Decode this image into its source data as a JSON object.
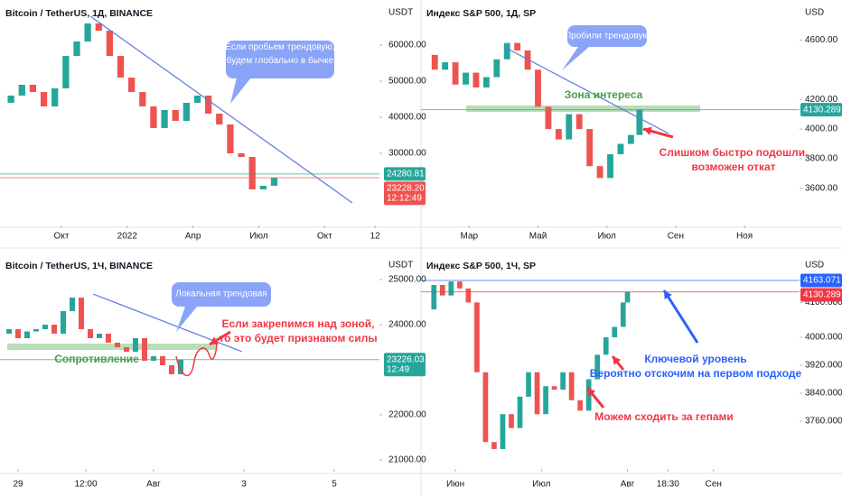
{
  "chart_data": [
    {
      "type": "candlestick",
      "title": "Bitcoin / TetherUS, 1Д, BINANCE",
      "unit": "USDT",
      "x": [
        -5.8,
        -5.3,
        -4.8,
        -4.3,
        -3.8,
        -3.3,
        -2.8,
        -2.3,
        -1.8,
        -1.3,
        -0.8,
        -0.3,
        0.2,
        0.7,
        1.2,
        1.7,
        2.2,
        2.7,
        3.2,
        3.7,
        4.2,
        4.7,
        5.2,
        5.7,
        6.2,
        6.7
      ],
      "values": [
        44000,
        46000,
        49000,
        47000,
        43000,
        48000,
        57000,
        61000,
        66000,
        64000,
        57000,
        51000,
        47000,
        43000,
        37000,
        42000,
        39000,
        44000,
        46000,
        41000,
        38000,
        30000,
        29000,
        20000,
        21000,
        23228.2
      ],
      "xlim": [
        -5.8,
        11.5
      ],
      "xticks": [
        {
          "value": -3,
          "label": "Окт"
        },
        {
          "value": 0,
          "label": "2022"
        },
        {
          "value": 3,
          "label": "Апр"
        },
        {
          "value": 6,
          "label": "Июл"
        },
        {
          "value": 9,
          "label": "Окт"
        },
        {
          "value": 11.3,
          "label": "12"
        }
      ],
      "ylim": [
        10000,
        72500
      ],
      "yticks": [
        {
          "value": 60000,
          "label": "60000.00"
        },
        {
          "value": 50000,
          "label": "50000.00"
        },
        {
          "value": 40000,
          "label": "40000.00"
        },
        {
          "value": 30000,
          "label": "30000.00"
        }
      ],
      "price_labels": [
        {
          "value": 24280.81,
          "label": "24280.81",
          "color": "#26a69a"
        },
        {
          "value": 23228.2,
          "label": "23228.20",
          "color": "#ef5350",
          "countdown": "12:12:49"
        }
      ],
      "annotations": [
        {
          "lines": [
            "Если пробьем трендовую,",
            "будем глобально в бычке"
          ],
          "color": "#8aa4f8"
        }
      ]
    },
    {
      "type": "candlestick",
      "title": "Индекс S&P 500, 1Д, SP",
      "unit": "USD",
      "x": [
        1.7,
        2.0,
        2.3,
        2.6,
        2.9,
        3.2,
        3.5,
        3.8,
        4.1,
        4.4,
        4.7,
        5.0,
        5.3,
        5.6,
        5.9,
        6.2,
        6.5,
        6.8,
        7.1,
        7.4,
        7.7,
        7.95
      ],
      "values": [
        4500,
        4400,
        4450,
        4300,
        4380,
        4280,
        4350,
        4470,
        4580,
        4530,
        4400,
        4150,
        4000,
        3930,
        4100,
        4000,
        3750,
        3670,
        3830,
        3900,
        3960,
        4130.289
      ],
      "xlim": [
        1.6,
        12.6
      ],
      "xticks": [
        {
          "value": 3,
          "label": "Мар"
        },
        {
          "value": 5,
          "label": "Май"
        },
        {
          "value": 7,
          "label": "Июл"
        },
        {
          "value": 9,
          "label": "Сен"
        },
        {
          "value": 11,
          "label": "Ноя"
        }
      ],
      "ylim": [
        3350,
        4870
      ],
      "yticks": [
        {
          "value": 4600,
          "label": "4600.00"
        },
        {
          "value": 4200,
          "label": "4200.00"
        },
        {
          "value": 4000,
          "label": "4000.00"
        },
        {
          "value": 3800,
          "label": "3800.00"
        },
        {
          "value": 3600,
          "label": "3600.00"
        }
      ],
      "price_labels": [
        {
          "value": 4130.289,
          "label": "4130.289",
          "color": "#26a69a"
        }
      ],
      "annotations": [
        {
          "lines": [
            "Пробили трендовую"
          ],
          "color": "#8aa4f8"
        },
        {
          "lines": [
            "Зона интереса"
          ],
          "color": "#43a047"
        },
        {
          "lines": [
            "Слишком быстро подошли,",
            "возможен откат"
          ],
          "color": "#f23645"
        }
      ]
    },
    {
      "type": "candlestick",
      "title": "Bitcoin / TetherUS, 1Ч, BINANCE",
      "unit": "USDT",
      "x": [
        -3.4,
        -3.2,
        -3.0,
        -2.8,
        -2.6,
        -2.4,
        -2.2,
        -2.0,
        -1.8,
        -1.6,
        -1.4,
        -1.2,
        -1.0,
        -0.8,
        -0.6,
        -0.4,
        -0.2,
        0.0,
        0.2,
        0.4,
        0.6
      ],
      "values": [
        23800,
        23900,
        23700,
        23850,
        23900,
        24000,
        23800,
        24300,
        24600,
        23900,
        23700,
        23800,
        23600,
        23500,
        23400,
        23700,
        23200,
        23300,
        23100,
        22900,
        23226.03
      ],
      "xlim": [
        -3.4,
        5.0
      ],
      "xticks": [
        {
          "value": -3,
          "label": "29"
        },
        {
          "value": -1.5,
          "label": "12:00"
        },
        {
          "value": 0,
          "label": "Авг"
        },
        {
          "value": 2,
          "label": "3"
        },
        {
          "value": 4,
          "label": "5"
        }
      ],
      "ylim": [
        20800,
        25600
      ],
      "yticks": [
        {
          "value": 25000,
          "label": "25000.00"
        },
        {
          "value": 24000,
          "label": "24000.00"
        },
        {
          "value": 22000,
          "label": "22000.00"
        },
        {
          "value": 21000,
          "label": "21000.00"
        }
      ],
      "price_labels": [
        {
          "value": 23226.03,
          "label": "23226.03",
          "color": "#26a69a",
          "countdown": "12:49"
        }
      ],
      "annotations": [
        {
          "lines": [
            "Локальная трендовая"
          ],
          "color": "#8aa4f8"
        },
        {
          "lines": [
            "Если закрепимся над зоной,",
            "то это будет признаком силы"
          ],
          "color": "#f23645"
        },
        {
          "lines": [
            "Сопротивление"
          ],
          "color": "#43a047"
        }
      ]
    },
    {
      "type": "candlestick",
      "title": "Индекс S&P 500, 1Ч, SP",
      "unit": "USD",
      "x": [
        5.65,
        5.75,
        5.85,
        5.95,
        6.05,
        6.15,
        6.25,
        6.35,
        6.45,
        6.55,
        6.65,
        6.75,
        6.85,
        6.95,
        7.05,
        7.15,
        7.25,
        7.35,
        7.45,
        7.55,
        7.65,
        7.75,
        7.85,
        7.95,
        8.0
      ],
      "values": [
        4080,
        4150,
        4120,
        4160,
        4140,
        4100,
        3900,
        3700,
        3680,
        3780,
        3740,
        3830,
        3900,
        3780,
        3860,
        3850,
        3900,
        3820,
        3790,
        3880,
        3950,
        4000,
        4030,
        4100,
        4130.289
      ],
      "xlim": [
        5.6,
        10.0
      ],
      "xticks": [
        {
          "value": 6,
          "label": "Июн"
        },
        {
          "value": 7,
          "label": "Июл"
        },
        {
          "value": 8,
          "label": "Авг"
        },
        {
          "value": 8.47,
          "label": "18:30"
        },
        {
          "value": 9,
          "label": "Сен"
        }
      ],
      "ylim": [
        3623,
        4243
      ],
      "yticks": [
        {
          "value": 4100,
          "label": "4100.000"
        },
        {
          "value": 4000,
          "label": "4000.000"
        },
        {
          "value": 3920,
          "label": "3920.000"
        },
        {
          "value": 3840,
          "label": "3840.000"
        },
        {
          "value": 3760,
          "label": "3760.000"
        }
      ],
      "price_labels": [
        {
          "value": 4163.071,
          "label": "4163.071",
          "color": "#2962ff"
        },
        {
          "value": 4130.289,
          "label": "4130.289",
          "color": "#f23645"
        }
      ],
      "annotations": [
        {
          "lines": [
            "Ключевой уровень",
            "Вероятно отскочим на первом подходе"
          ],
          "color": "#2962ff"
        },
        {
          "lines": [
            "Можем сходить за гепами"
          ],
          "color": "#f23645"
        }
      ]
    }
  ]
}
